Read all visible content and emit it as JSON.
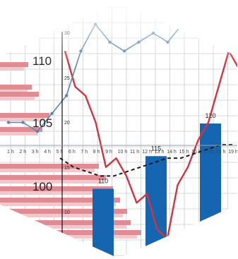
{
  "chart_data": [
    {
      "type": "bar",
      "title": "",
      "xlabel": "",
      "ylabel": "",
      "y_tick_labels": [
        "110",
        "105",
        "100"
      ],
      "x_tick_labels": [
        "1 h",
        "2 h",
        "3 h",
        "4 h",
        "5 h",
        "6 h",
        "7 h",
        "8 h",
        "9 h",
        "10 h",
        "11 h",
        "12 h",
        "13 h",
        "14 h",
        "15 h",
        "16 h",
        "17 h",
        "18 h",
        "19 h"
      ],
      "bar_labels": [
        "110",
        "115",
        "120"
      ],
      "bar_values": [
        110,
        115,
        120
      ],
      "grid": true,
      "colors": {
        "bars": "#1565b0",
        "red_line": "#d2333f",
        "blue_line": "#5b86ad",
        "dashed_line": "#1a1a1a",
        "stripes": "#e08c94",
        "stripes_light": "#f3c7cb"
      }
    },
    {
      "type": "line",
      "title": "",
      "secondary_axis_tick_labels": [
        "30",
        "25",
        "20",
        "15",
        "10"
      ],
      "series": [
        {
          "name": "",
          "color": "#d2333f",
          "values": [
            28,
            24,
            23,
            20,
            15,
            16,
            14,
            11,
            12,
            8,
            7,
            13,
            15,
            18,
            20,
            24,
            28,
            26
          ]
        },
        {
          "name": "",
          "color": "#5b86ad",
          "values": [
            20,
            20,
            19,
            21,
            23,
            28,
            31,
            29,
            28,
            29,
            30,
            29,
            31,
            32
          ]
        },
        {
          "name": "",
          "color": "#1a1a1a",
          "dashed": true,
          "values": [
            16,
            15,
            14.5,
            14,
            14,
            14.5,
            15,
            15.5,
            16,
            16,
            16.5,
            17,
            17.5,
            17.5
          ]
        }
      ]
    }
  ]
}
